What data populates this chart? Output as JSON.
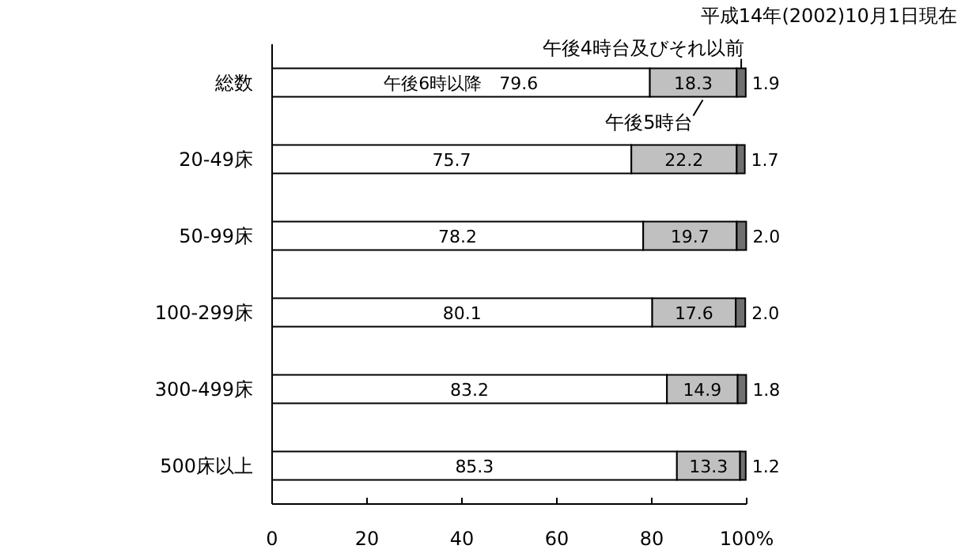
{
  "chart_data": {
    "type": "bar",
    "orientation": "horizontal",
    "stacked": true,
    "annotations": [
      "平成14年(2002)10月1日現在"
    ],
    "categories": [
      "総数",
      "20-49床",
      "50-99床",
      "100-299床",
      "300-499床",
      "500床以上"
    ],
    "series": [
      {
        "name": "午後6時以降",
        "color": "#ffffff",
        "values": [
          79.6,
          75.7,
          78.2,
          80.1,
          83.2,
          85.3
        ],
        "value_labels": [
          "79.6",
          "75.7",
          "78.2",
          "80.1",
          "83.2",
          "85.3"
        ]
      },
      {
        "name": "午後5時台",
        "color": "#c0c0c0",
        "values": [
          18.3,
          22.2,
          19.7,
          17.6,
          14.9,
          13.3
        ],
        "value_labels": [
          "18.3",
          "22.2",
          "19.7",
          "17.6",
          "14.9",
          "13.3"
        ]
      },
      {
        "name": "午後4時台及びそれ以前",
        "color": "#707070",
        "values": [
          1.9,
          1.7,
          2.0,
          2.0,
          1.8,
          1.2
        ],
        "value_labels": [
          "1.9",
          "1.7",
          "2.0",
          "2.0",
          "1.8",
          "1.2"
        ]
      }
    ],
    "xlim": [
      0,
      100
    ],
    "xticks": [
      0,
      20,
      40,
      60,
      80,
      {
        "value": 100,
        "label": "100%"
      }
    ],
    "grid": false
  }
}
